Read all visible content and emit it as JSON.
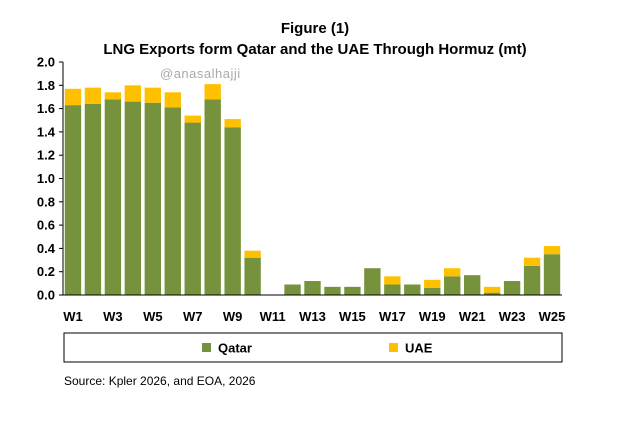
{
  "figure": {
    "label": "Figure (1)",
    "watermark": "@anasalhajji",
    "source": "Source: Kpler 2026, and EOA, 2026"
  },
  "chart_data": {
    "type": "bar",
    "stacked": true,
    "title": "LNG Exports form Qatar and the UAE Through Hormuz (mt)",
    "xlabel": "",
    "ylabel": "",
    "categories": [
      "W1",
      "W2",
      "W3",
      "W4",
      "W5",
      "W6",
      "W7",
      "W8",
      "W9",
      "W10",
      "W11",
      "W12",
      "W13",
      "W14",
      "W15",
      "W16",
      "W17",
      "W18",
      "W19",
      "W20",
      "W21",
      "W22",
      "W23",
      "W24",
      "W25"
    ],
    "x_tick_labels": [
      "W1",
      "W3",
      "W5",
      "W7",
      "W9",
      "W11",
      "W13",
      "W15",
      "W17",
      "W19",
      "W21",
      "W23",
      "W25"
    ],
    "y_ticks": [
      "0.0",
      "0.2",
      "0.4",
      "0.6",
      "0.8",
      "1.0",
      "1.2",
      "1.4",
      "1.6",
      "1.8",
      "2.0"
    ],
    "ylim": [
      0,
      2.0
    ],
    "grid": false,
    "legend_position": "bottom",
    "series": [
      {
        "name": "Qatar",
        "color": "#76923c",
        "values": [
          1.63,
          1.64,
          1.68,
          1.66,
          1.65,
          1.61,
          1.48,
          1.68,
          1.44,
          0.32,
          0,
          0.09,
          0.12,
          0.07,
          0.07,
          0.23,
          0.09,
          0.09,
          0.06,
          0.16,
          0.17,
          0.02,
          0.12,
          0.25,
          0.35
        ]
      },
      {
        "name": "UAE",
        "color": "#ffc000",
        "values": [
          0.14,
          0.14,
          0.06,
          0.14,
          0.13,
          0.13,
          0.06,
          0.13,
          0.07,
          0.06,
          0,
          0,
          0,
          0,
          0,
          0,
          0.07,
          0,
          0.07,
          0.07,
          0,
          0.05,
          0,
          0.07,
          0.07
        ]
      }
    ]
  }
}
